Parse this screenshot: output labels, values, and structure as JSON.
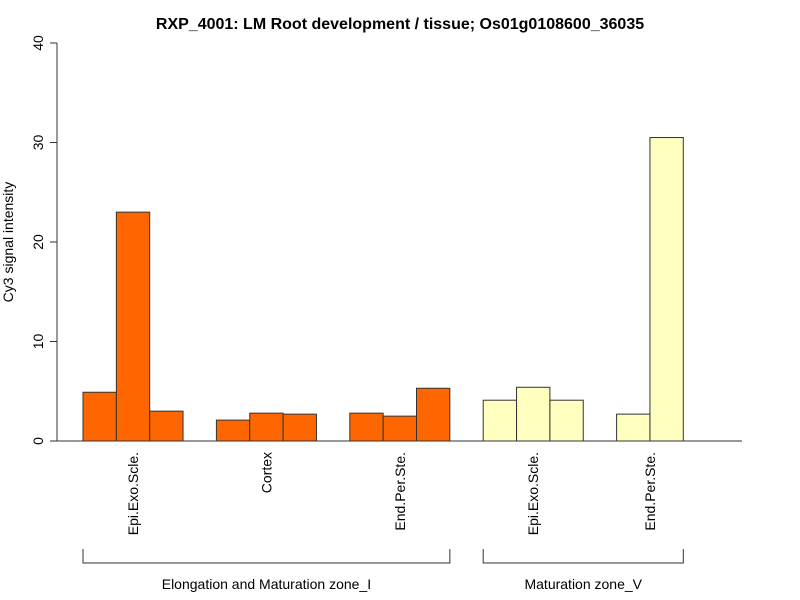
{
  "chart_data": {
    "type": "bar",
    "title": "RXP_4001: LM Root development / tissue; Os01g0108600_36035",
    "xlabel": "",
    "ylabel": "Cy3 signal intensity",
    "ylim": [
      0,
      40
    ],
    "yticks": [
      "0",
      "10",
      "20",
      "30",
      "40"
    ],
    "grid": false,
    "groups": [
      {
        "label": "Epi.Exo.Scle.",
        "zone": 0,
        "color": "#FF6600",
        "values": [
          4.9,
          23.0,
          3.0
        ]
      },
      {
        "label": "Cortex",
        "zone": 0,
        "color": "#FF6600",
        "values": [
          2.1,
          2.8,
          2.7
        ]
      },
      {
        "label": "End.Per.Ste.",
        "zone": 0,
        "color": "#FF6600",
        "values": [
          2.8,
          2.5,
          5.3
        ]
      },
      {
        "label": "Epi.Exo.Scle.",
        "zone": 1,
        "color": "#FFFFC0",
        "values": [
          4.1,
          5.4,
          4.1
        ]
      },
      {
        "label": "End.Per.Ste.",
        "zone": 1,
        "color": "#FFFFC0",
        "values": [
          2.7,
          30.5
        ]
      }
    ],
    "zones": [
      "Elongation and Maturation zone_I",
      "Maturation zone_V"
    ]
  }
}
